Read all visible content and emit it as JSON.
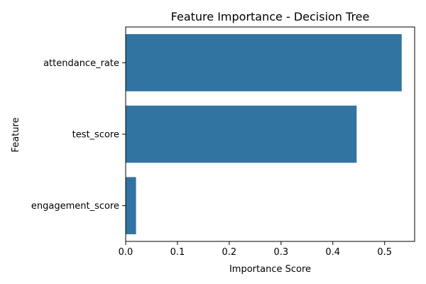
{
  "chart_data": {
    "type": "bar",
    "orientation": "horizontal",
    "title": "Feature Importance - Decision Tree",
    "xlabel": "Importance Score",
    "ylabel": "Feature",
    "categories": [
      "attendance_rate",
      "test_score",
      "engagement_score"
    ],
    "values": [
      0.533,
      0.446,
      0.02
    ],
    "xlim": [
      0,
      0.558
    ],
    "xticks": [
      0.0,
      0.1,
      0.2,
      0.3,
      0.4,
      0.5
    ],
    "xtick_labels": [
      "0.0",
      "0.1",
      "0.2",
      "0.3",
      "0.4",
      "0.5"
    ],
    "grid": false,
    "bar_color": "#3274a1"
  }
}
